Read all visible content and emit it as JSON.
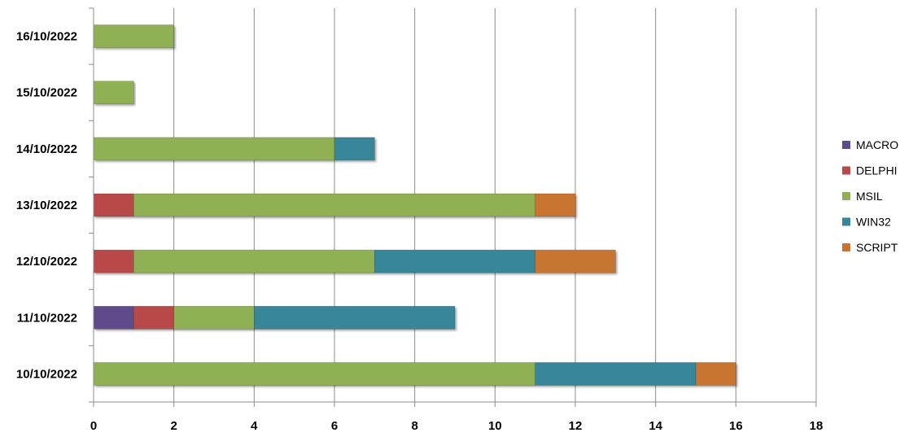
{
  "chart_data": {
    "type": "bar",
    "orientation": "horizontal",
    "stacked": true,
    "categories": [
      "10/10/2022",
      "11/10/2022",
      "12/10/2022",
      "13/10/2022",
      "14/10/2022",
      "15/10/2022",
      "16/10/2022"
    ],
    "series": [
      {
        "name": "MACRO",
        "color": "#5f4b8b",
        "values": [
          0,
          1,
          0,
          0,
          0,
          0,
          0
        ]
      },
      {
        "name": "DELPHI",
        "color": "#b94a48",
        "values": [
          0,
          1,
          1,
          1,
          0,
          0,
          0
        ]
      },
      {
        "name": "MSIL",
        "color": "#8fb052",
        "values": [
          11,
          2,
          6,
          10,
          6,
          1,
          2
        ]
      },
      {
        "name": "WIN32",
        "color": "#388699",
        "values": [
          4,
          5,
          4,
          0,
          1,
          0,
          0
        ]
      },
      {
        "name": "SCRIPT",
        "color": "#c87533",
        "values": [
          1,
          0,
          2,
          1,
          0,
          0,
          0
        ]
      }
    ],
    "xlim": [
      0,
      18
    ],
    "xticks": [
      "0",
      "2",
      "4",
      "6",
      "8",
      "10",
      "12",
      "14",
      "16",
      "18"
    ],
    "grid": "vertical",
    "legend": "right",
    "title": "",
    "xlabel": "",
    "ylabel": ""
  }
}
